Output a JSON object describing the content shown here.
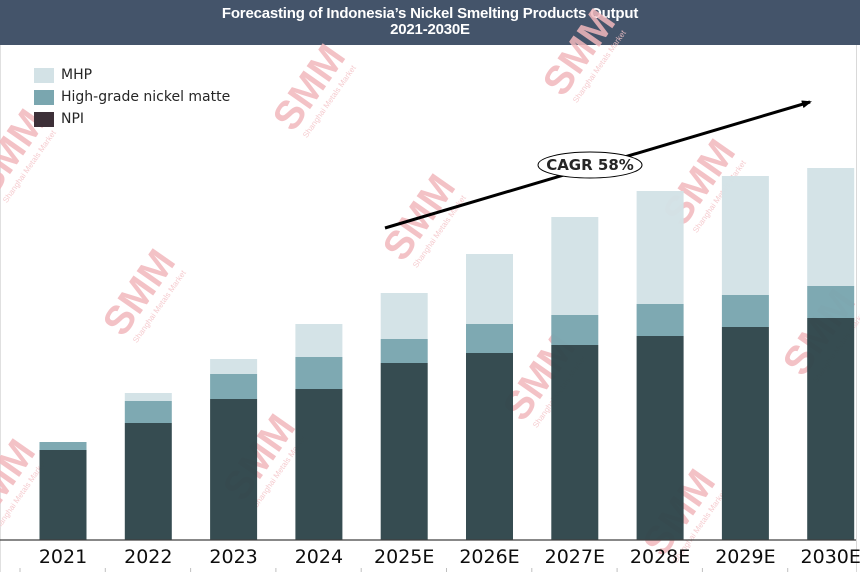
{
  "chart_data": {
    "type": "bar",
    "stacked": true,
    "title": "Forecasting of Indonesia’s Nickel Smelting Products Output",
    "subtitle": "2021-2030E",
    "xlabel": "",
    "ylabel": "",
    "y_axis_shown": false,
    "units": "relative (no axis scale shown)",
    "ylim": [
      0,
      400
    ],
    "grid": false,
    "legend_position": "top-left",
    "categories": [
      "2021",
      "2022",
      "2023",
      "2024",
      "2025E",
      "2026E",
      "2027E",
      "2028E",
      "2029E",
      "2030E"
    ],
    "series": [
      {
        "name": "NPI",
        "color": "#2f464b",
        "values": [
          90,
          117,
          141,
          151,
          177,
          187,
          195,
          204,
          213,
          222
        ]
      },
      {
        "name": "High-grade nickel matte",
        "color": "#7aa6af",
        "values": [
          8,
          22,
          25,
          32,
          24,
          29,
          30,
          32,
          32,
          32
        ]
      },
      {
        "name": "MHP",
        "color": "#d3e2e6",
        "values": [
          0,
          8,
          15,
          33,
          46,
          70,
          98,
          113,
          119,
          118
        ]
      }
    ],
    "legend_order": [
      "MHP",
      "High-grade nickel matte",
      "NPI"
    ],
    "annotations": [
      {
        "type": "arrow",
        "label": "CAGR 58%",
        "from_category": "2025E",
        "to_category": "2030E",
        "direction": "up-right"
      }
    ],
    "watermark": {
      "logo": "SMM",
      "text": "Shanghai Metals Market"
    }
  },
  "header": {
    "line1": "Forecasting of Indonesia’s Nickel Smelting Products Output",
    "line2": "2021-2030E",
    "background": "#44546a"
  }
}
